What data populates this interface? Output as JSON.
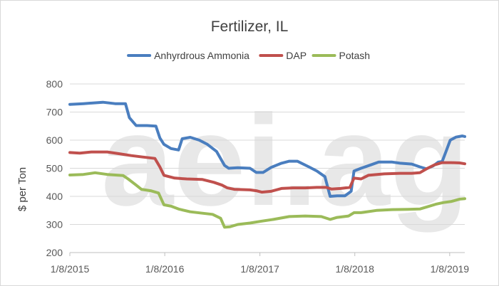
{
  "chart_data": {
    "type": "line",
    "title": "Fertilizer, IL",
    "ylabel": "$ per Ton",
    "xlabel": "",
    "watermark": "aei.ag",
    "ylim": [
      200,
      800
    ],
    "yticks": [
      200,
      300,
      400,
      500,
      600,
      700,
      800
    ],
    "xrange": [
      "2015-01-08",
      "2019-03-07"
    ],
    "xticks": [
      {
        "date": "2015-01-08",
        "label": "1/8/2015"
      },
      {
        "date": "2016-01-08",
        "label": "1/8/2016"
      },
      {
        "date": "2017-01-08",
        "label": "1/8/2017"
      },
      {
        "date": "2018-01-08",
        "label": "1/8/2018"
      },
      {
        "date": "2019-01-08",
        "label": "1/8/2019"
      }
    ],
    "legend_position": "top",
    "grid": "horizontal",
    "series": [
      {
        "name": "Anhyrdrous Ammonia",
        "color": "#4a7ebf",
        "points": [
          [
            "2015-01-08",
            727
          ],
          [
            "2015-03-01",
            730
          ],
          [
            "2015-05-15",
            735
          ],
          [
            "2015-07-01",
            730
          ],
          [
            "2015-08-10",
            730
          ],
          [
            "2015-08-25",
            680
          ],
          [
            "2015-09-20",
            652
          ],
          [
            "2015-11-01",
            652
          ],
          [
            "2015-12-05",
            650
          ],
          [
            "2015-12-20",
            608
          ],
          [
            "2016-01-05",
            585
          ],
          [
            "2016-02-01",
            570
          ],
          [
            "2016-03-01",
            565
          ],
          [
            "2016-03-15",
            605
          ],
          [
            "2016-04-15",
            610
          ],
          [
            "2016-05-20",
            600
          ],
          [
            "2016-06-20",
            585
          ],
          [
            "2016-07-25",
            560
          ],
          [
            "2016-08-25",
            510
          ],
          [
            "2016-09-10",
            500
          ],
          [
            "2016-10-15",
            502
          ],
          [
            "2016-12-01",
            500
          ],
          [
            "2016-12-25",
            485
          ],
          [
            "2017-01-20",
            485
          ],
          [
            "2017-02-20",
            503
          ],
          [
            "2017-04-01",
            518
          ],
          [
            "2017-05-01",
            525
          ],
          [
            "2017-06-01",
            525
          ],
          [
            "2017-07-15",
            505
          ],
          [
            "2017-08-15",
            490
          ],
          [
            "2017-09-15",
            470
          ],
          [
            "2017-10-05",
            400
          ],
          [
            "2017-11-01",
            402
          ],
          [
            "2017-12-01",
            402
          ],
          [
            "2017-12-25",
            418
          ],
          [
            "2018-01-05",
            490
          ],
          [
            "2018-02-01",
            500
          ],
          [
            "2018-03-10",
            512
          ],
          [
            "2018-04-10",
            522
          ],
          [
            "2018-06-01",
            522
          ],
          [
            "2018-07-01",
            518
          ],
          [
            "2018-08-15",
            515
          ],
          [
            "2018-09-15",
            505
          ],
          [
            "2018-10-10",
            498
          ],
          [
            "2018-11-05",
            508
          ],
          [
            "2018-11-25",
            522
          ],
          [
            "2018-12-10",
            524
          ],
          [
            "2018-12-25",
            560
          ],
          [
            "2019-01-10",
            600
          ],
          [
            "2019-02-01",
            611
          ],
          [
            "2019-02-25",
            615
          ],
          [
            "2019-03-07",
            613
          ]
        ]
      },
      {
        "name": "DAP",
        "color": "#c0504d",
        "points": [
          [
            "2015-01-08",
            556
          ],
          [
            "2015-02-15",
            554
          ],
          [
            "2015-04-01",
            558
          ],
          [
            "2015-06-01",
            558
          ],
          [
            "2015-07-15",
            552
          ],
          [
            "2015-09-01",
            545
          ],
          [
            "2015-10-15",
            540
          ],
          [
            "2015-12-01",
            535
          ],
          [
            "2015-12-20",
            505
          ],
          [
            "2016-01-05",
            475
          ],
          [
            "2016-02-15",
            465
          ],
          [
            "2016-04-01",
            462
          ],
          [
            "2016-06-01",
            460
          ],
          [
            "2016-07-15",
            450
          ],
          [
            "2016-08-15",
            440
          ],
          [
            "2016-09-05",
            430
          ],
          [
            "2016-10-01",
            425
          ],
          [
            "2016-12-01",
            423
          ],
          [
            "2016-12-25",
            420
          ],
          [
            "2017-01-15",
            415
          ],
          [
            "2017-02-20",
            418
          ],
          [
            "2017-04-01",
            428
          ],
          [
            "2017-05-15",
            430
          ],
          [
            "2017-07-01",
            430
          ],
          [
            "2017-08-15",
            432
          ],
          [
            "2017-09-20",
            432
          ],
          [
            "2017-10-10",
            426
          ],
          [
            "2017-11-15",
            428
          ],
          [
            "2017-12-20",
            432
          ],
          [
            "2018-01-05",
            465
          ],
          [
            "2018-02-01",
            462
          ],
          [
            "2018-03-01",
            475
          ],
          [
            "2018-05-01",
            480
          ],
          [
            "2018-07-01",
            482
          ],
          [
            "2018-08-15",
            482
          ],
          [
            "2018-09-15",
            484
          ],
          [
            "2018-10-15",
            500
          ],
          [
            "2018-11-10",
            512
          ],
          [
            "2018-12-10",
            520
          ],
          [
            "2019-01-15",
            520
          ],
          [
            "2019-02-15",
            519
          ],
          [
            "2019-03-07",
            516
          ]
        ]
      },
      {
        "name": "Potash",
        "color": "#9bbb59",
        "points": [
          [
            "2015-01-08",
            476
          ],
          [
            "2015-03-01",
            478
          ],
          [
            "2015-04-15",
            484
          ],
          [
            "2015-06-01",
            478
          ],
          [
            "2015-08-01",
            474
          ],
          [
            "2015-08-20",
            462
          ],
          [
            "2015-09-20",
            440
          ],
          [
            "2015-10-10",
            425
          ],
          [
            "2015-11-15",
            420
          ],
          [
            "2015-12-15",
            412
          ],
          [
            "2016-01-05",
            370
          ],
          [
            "2016-02-01",
            365
          ],
          [
            "2016-03-01",
            355
          ],
          [
            "2016-04-15",
            345
          ],
          [
            "2016-06-01",
            340
          ],
          [
            "2016-07-10",
            336
          ],
          [
            "2016-08-10",
            322
          ],
          [
            "2016-08-25",
            290
          ],
          [
            "2016-09-15",
            292
          ],
          [
            "2016-10-15",
            300
          ],
          [
            "2016-12-01",
            305
          ],
          [
            "2017-01-15",
            312
          ],
          [
            "2017-03-01",
            318
          ],
          [
            "2017-05-01",
            328
          ],
          [
            "2017-07-01",
            330
          ],
          [
            "2017-09-01",
            328
          ],
          [
            "2017-10-05",
            318
          ],
          [
            "2017-11-01",
            325
          ],
          [
            "2017-12-15",
            330
          ],
          [
            "2018-01-05",
            342
          ],
          [
            "2018-02-01",
            342
          ],
          [
            "2018-04-01",
            350
          ],
          [
            "2018-06-01",
            353
          ],
          [
            "2018-08-01",
            354
          ],
          [
            "2018-09-15",
            355
          ],
          [
            "2018-10-15",
            363
          ],
          [
            "2018-11-15",
            372
          ],
          [
            "2018-12-15",
            378
          ],
          [
            "2019-01-15",
            382
          ],
          [
            "2019-02-15",
            390
          ],
          [
            "2019-03-07",
            392
          ]
        ]
      }
    ]
  }
}
